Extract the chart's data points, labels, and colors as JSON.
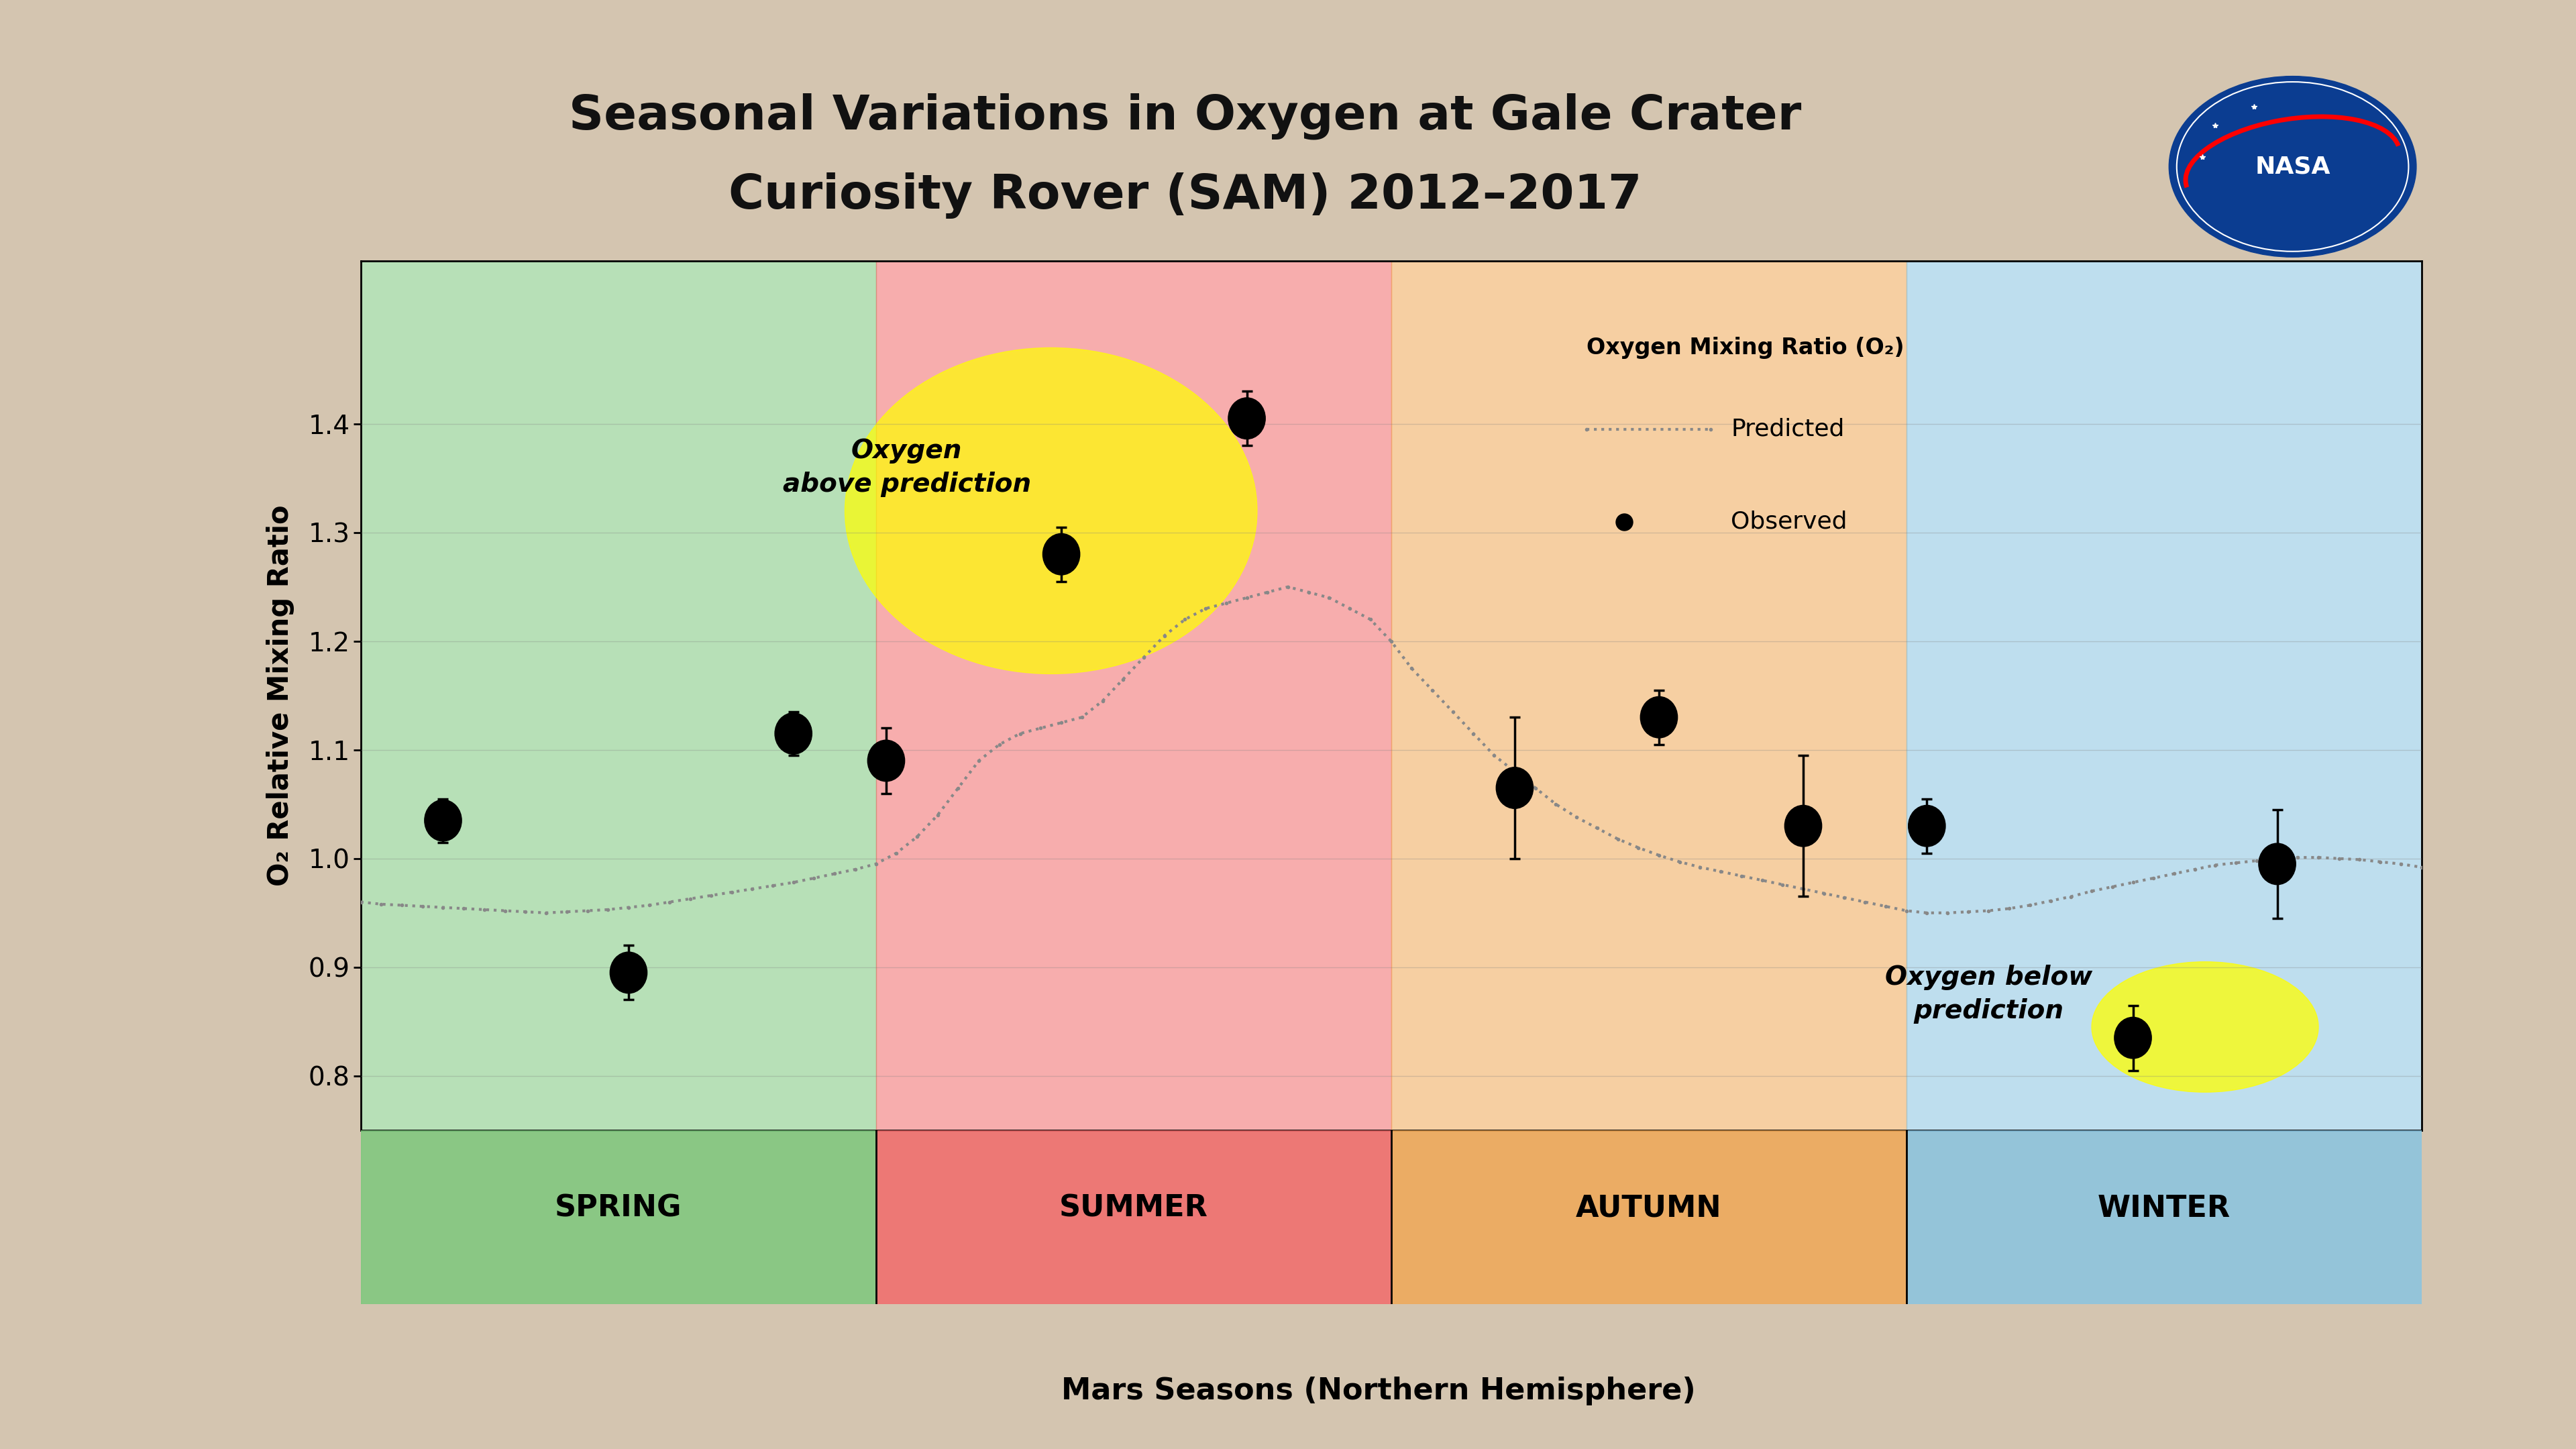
{
  "title_line1": "Seasonal Variations in Oxygen at Gale Crater",
  "title_line2": "Curiosity Rover (SAM) 2012–2017",
  "xlabel": "Mars Seasons (Northern Hemisphere)",
  "ylabel": "O₂ Relative Mixing Ratio",
  "legend_title": "Oxygen Mixing Ratio (O₂)",
  "legend_predicted": "Predicted",
  "legend_observed": "Observed",
  "ylim": [
    0.75,
    1.55
  ],
  "yticks": [
    0.8,
    0.9,
    1.0,
    1.1,
    1.2,
    1.3,
    1.4
  ],
  "seasons": [
    "SPRING",
    "SUMMER",
    "AUTUMN",
    "WINTER"
  ],
  "season_colors": [
    "#7dc87d",
    "#f26b6b",
    "#f0a857",
    "#89c4e1"
  ],
  "season_boundaries": [
    0.0,
    0.25,
    0.5,
    0.75,
    1.0
  ],
  "annotation_above": "Oxygen\nabove prediction",
  "annotation_below": "Oxygen below\nprediction",
  "observed_x": [
    0.04,
    0.13,
    0.21,
    0.255,
    0.34,
    0.43,
    0.56,
    0.63,
    0.7,
    0.76,
    0.86,
    0.93
  ],
  "observed_y": [
    1.035,
    0.895,
    1.115,
    1.09,
    1.28,
    1.405,
    1.065,
    1.13,
    1.03,
    1.03,
    0.835,
    0.995
  ],
  "observed_yerr_low": [
    0.02,
    0.025,
    0.02,
    0.03,
    0.025,
    0.025,
    0.065,
    0.025,
    0.065,
    0.025,
    0.03,
    0.05
  ],
  "observed_yerr_high": [
    0.02,
    0.025,
    0.02,
    0.03,
    0.025,
    0.025,
    0.065,
    0.025,
    0.065,
    0.025,
    0.03,
    0.05
  ],
  "predicted_x": [
    0.0,
    0.01,
    0.02,
    0.03,
    0.04,
    0.05,
    0.06,
    0.07,
    0.08,
    0.09,
    0.1,
    0.11,
    0.12,
    0.13,
    0.14,
    0.15,
    0.16,
    0.17,
    0.18,
    0.19,
    0.2,
    0.21,
    0.22,
    0.23,
    0.24,
    0.25,
    0.26,
    0.27,
    0.28,
    0.29,
    0.3,
    0.31,
    0.32,
    0.33,
    0.34,
    0.35,
    0.36,
    0.37,
    0.38,
    0.39,
    0.4,
    0.41,
    0.42,
    0.43,
    0.44,
    0.45,
    0.46,
    0.47,
    0.48,
    0.49,
    0.5,
    0.51,
    0.52,
    0.53,
    0.54,
    0.55,
    0.56,
    0.57,
    0.58,
    0.59,
    0.6,
    0.61,
    0.62,
    0.63,
    0.64,
    0.65,
    0.66,
    0.67,
    0.68,
    0.69,
    0.7,
    0.71,
    0.72,
    0.73,
    0.74,
    0.75,
    0.76,
    0.77,
    0.78,
    0.79,
    0.8,
    0.81,
    0.82,
    0.83,
    0.84,
    0.85,
    0.86,
    0.87,
    0.88,
    0.89,
    0.9,
    0.91,
    0.92,
    0.93,
    0.94,
    0.95,
    0.96,
    0.97,
    0.98,
    0.99,
    1.0
  ],
  "predicted_y": [
    0.96,
    0.958,
    0.957,
    0.956,
    0.955,
    0.954,
    0.953,
    0.952,
    0.951,
    0.95,
    0.951,
    0.952,
    0.953,
    0.955,
    0.957,
    0.96,
    0.963,
    0.966,
    0.969,
    0.972,
    0.975,
    0.978,
    0.982,
    0.986,
    0.99,
    0.995,
    1.005,
    1.02,
    1.04,
    1.065,
    1.09,
    1.105,
    1.115,
    1.12,
    1.125,
    1.13,
    1.145,
    1.165,
    1.185,
    1.205,
    1.22,
    1.23,
    1.235,
    1.24,
    1.245,
    1.25,
    1.245,
    1.24,
    1.23,
    1.22,
    1.2,
    1.175,
    1.155,
    1.135,
    1.115,
    1.095,
    1.08,
    1.065,
    1.05,
    1.038,
    1.028,
    1.018,
    1.01,
    1.003,
    0.997,
    0.992,
    0.988,
    0.984,
    0.98,
    0.976,
    0.972,
    0.968,
    0.964,
    0.96,
    0.956,
    0.952,
    0.95,
    0.95,
    0.951,
    0.952,
    0.954,
    0.957,
    0.961,
    0.965,
    0.97,
    0.974,
    0.978,
    0.982,
    0.986,
    0.99,
    0.994,
    0.996,
    0.998,
    1.0,
    1.001,
    1.001,
    1.0,
    0.999,
    0.997,
    0.995,
    0.992
  ],
  "background_color": "#d4c5b0",
  "plot_bg_alpha": 0.55,
  "title_color": "#111111",
  "title_fontsize": 52,
  "axis_label_fontsize": 30,
  "tick_fontsize": 28,
  "season_label_fontsize": 32,
  "annotation_fontsize": 28,
  "legend_fontsize": 26
}
